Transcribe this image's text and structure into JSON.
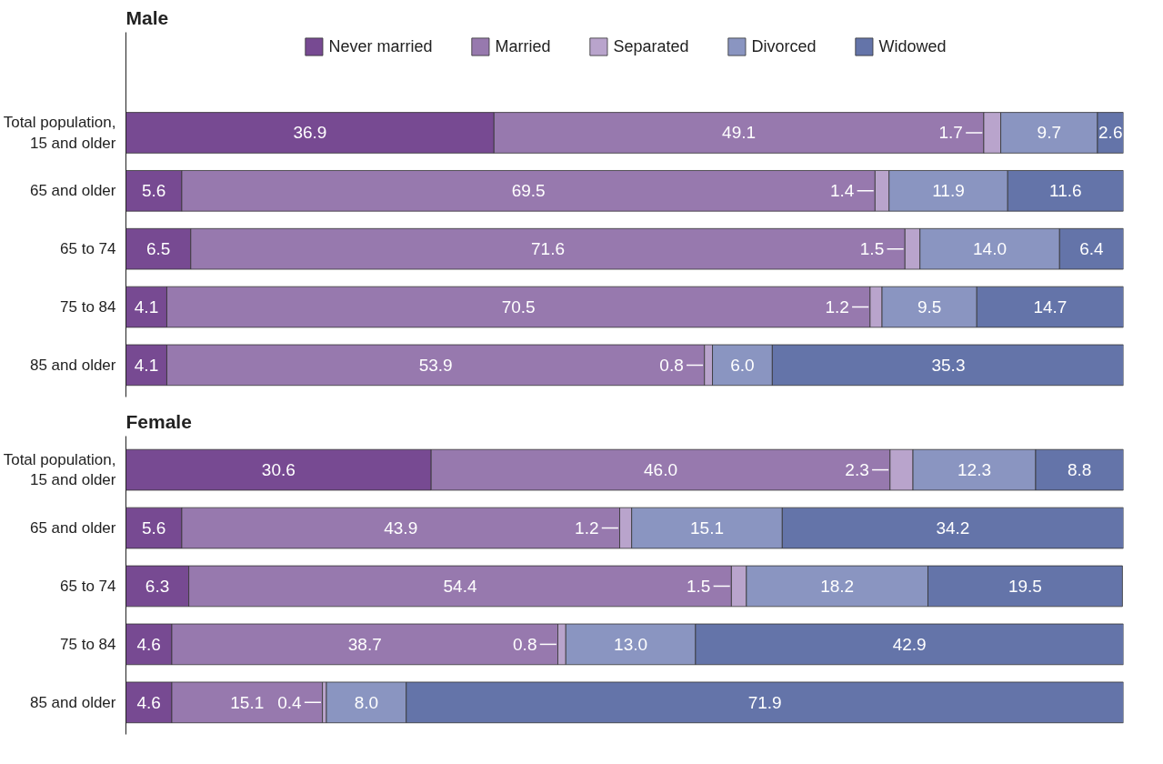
{
  "chart_data": [
    {
      "type": "bar",
      "title": "Male",
      "orientation": "horizontal",
      "stacked": true,
      "legend": "top",
      "tick_labels": "y",
      "xlim": [
        0,
        100
      ],
      "categories": [
        "Total population,\n15 and older",
        "65 and older",
        "65 to 74",
        "75 to 84",
        "85 and older"
      ],
      "series": [
        {
          "name": "Never married",
          "color": "#774a92",
          "values": [
            36.9,
            5.6,
            6.5,
            4.1,
            4.1
          ],
          "value_labels": [
            "36.9",
            "5.6",
            "6.5",
            "4.1",
            "4.1"
          ]
        },
        {
          "name": "Married",
          "color": "#9779ae",
          "values": [
            49.1,
            69.5,
            71.6,
            70.5,
            53.9
          ],
          "value_labels": [
            "49.1",
            "69.5",
            "71.6",
            "70.5",
            "53.9"
          ]
        },
        {
          "name": "Separated",
          "color": "#b9a4cc",
          "values": [
            1.7,
            1.4,
            1.5,
            1.2,
            0.8
          ],
          "value_labels": [
            "1.7",
            "1.4",
            "1.5",
            "1.2",
            "0.8"
          ]
        },
        {
          "name": "Divorced",
          "color": "#8a95c1",
          "values": [
            9.7,
            11.9,
            14.0,
            9.5,
            6.0
          ],
          "value_labels": [
            "9.7",
            "11.9",
            "14.0",
            "9.5",
            "6.0"
          ]
        },
        {
          "name": "Widowed",
          "color": "#6474a9",
          "values": [
            2.6,
            11.6,
            6.4,
            14.7,
            35.3
          ],
          "value_labels": [
            "2.6",
            "11.6",
            "6.4",
            "14.7",
            "35.3"
          ]
        }
      ]
    },
    {
      "type": "bar",
      "title": "Female",
      "orientation": "horizontal",
      "stacked": true,
      "tick_labels": "y",
      "xlim": [
        0,
        100
      ],
      "categories": [
        "Total population,\n15 and older",
        "65 and older",
        "65 to 74",
        "75 to 84",
        "85 and older"
      ],
      "series": [
        {
          "color": "#774a92",
          "values": [
            30.6,
            5.6,
            6.3,
            4.6,
            4.6
          ],
          "value_labels": [
            "30.6",
            "5.6",
            "6.3",
            "4.6",
            "4.6"
          ]
        },
        {
          "color": "#9779ae",
          "values": [
            46.0,
            43.9,
            54.4,
            38.7,
            15.1
          ],
          "value_labels": [
            "46.0",
            "43.9",
            "54.4",
            "38.7",
            "15.1"
          ]
        },
        {
          "color": "#b9a4cc",
          "values": [
            2.3,
            1.2,
            1.5,
            0.8,
            0.4
          ],
          "value_labels": [
            "2.3",
            "1.2",
            "1.5",
            "0.8",
            "0.4"
          ]
        },
        {
          "color": "#8a95c1",
          "values": [
            12.3,
            15.1,
            18.2,
            13.0,
            8.0
          ],
          "value_labels": [
            "12.3",
            "15.1",
            "18.2",
            "13.0",
            "8.0"
          ]
        },
        {
          "color": "#6474a9",
          "values": [
            8.8,
            34.2,
            19.5,
            42.9,
            71.9
          ],
          "value_labels": [
            "8.8",
            "34.2",
            "19.5",
            "42.9",
            "71.9"
          ]
        }
      ]
    }
  ]
}
